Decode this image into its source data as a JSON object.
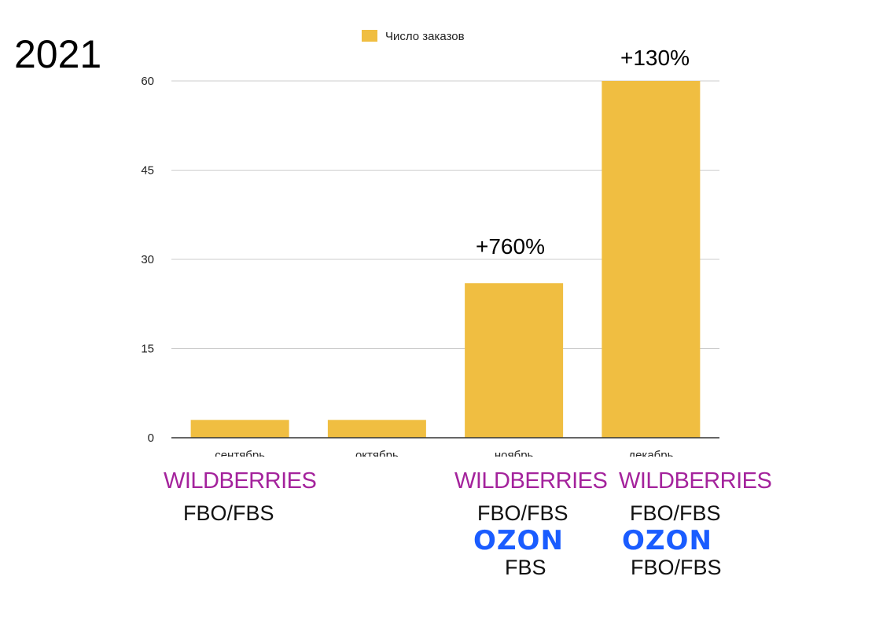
{
  "year_label": "2021",
  "chart_data": {
    "type": "bar",
    "categories": [
      "сентябрь",
      "октябрь",
      "ноябрь",
      "декабрь"
    ],
    "series": [
      {
        "name": "Число заказов",
        "values": [
          3,
          3,
          26,
          60
        ]
      }
    ],
    "ylim": [
      0,
      60
    ],
    "yticks": [
      0,
      15,
      30,
      45,
      60
    ],
    "grid": true,
    "legend": "top",
    "bar_color": "#f0be41",
    "annotations": [
      {
        "category": "ноябрь",
        "text": "+760%"
      },
      {
        "category": "декабрь",
        "text": "+130%"
      }
    ]
  },
  "marketplaces": [
    {
      "category": "сентябрь",
      "wildberries": "WILDBERRIES",
      "wildberries_model": "FBO/FBS"
    },
    {
      "category": "ноябрь",
      "wildberries": "WILDBERRIES",
      "wildberries_model": "FBO/FBS",
      "ozon": "OZON",
      "ozon_model": "FBS"
    },
    {
      "category": "декабрь",
      "wildberries": "WILDBERRIES",
      "wildberries_model": "FBO/FBS",
      "ozon": "OZON",
      "ozon_model": "FBO/FBS"
    }
  ],
  "colors": {
    "wildberries": "#a4239c",
    "ozon": "#1a5cff",
    "grid": "#cccccc",
    "axis": "#333333"
  }
}
